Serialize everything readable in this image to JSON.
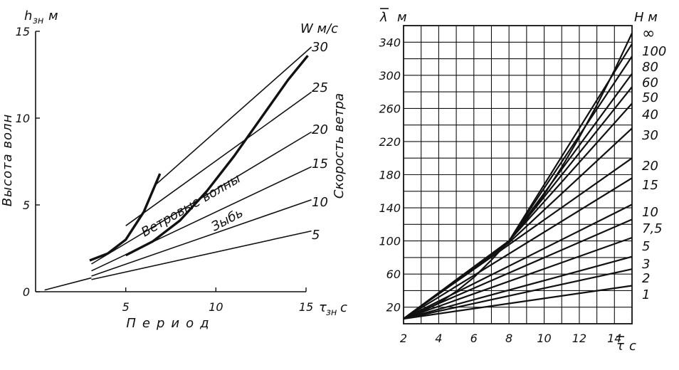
{
  "chart_data": [
    {
      "type": "line",
      "ylabel_symbol": "h",
      "ylabel_subscript": "зн",
      "ylabel_unit": "м",
      "ylabel_side": "Высота волн",
      "xlabel": "Период",
      "xlabel_symbol": "τ",
      "xlabel_subscript": "зн",
      "xlabel_unit": "с",
      "xlim": [
        0,
        15
      ],
      "ylim": [
        0,
        15
      ],
      "x_ticks": [
        5,
        10,
        15
      ],
      "y_ticks": [
        0,
        5,
        10,
        15
      ],
      "x_tick_labels": [
        "5",
        "10",
        "15"
      ],
      "y_tick_labels": [
        "0",
        "5",
        "10",
        "15"
      ],
      "grid": false,
      "speed_header": "W м/с",
      "speed_axis_label": "Скорость ветра",
      "speed_labels": [
        "30",
        "25",
        "20",
        "15",
        "10",
        "5"
      ],
      "annotations": [
        "Ветровые волны",
        "Зыбь"
      ],
      "series": [
        {
          "name": "30",
          "x": [
            6.7,
            15.3
          ],
          "y": [
            6.2,
            14.1
          ]
        },
        {
          "name": "25",
          "x": [
            5.0,
            15.3
          ],
          "y": [
            3.8,
            11.5
          ]
        },
        {
          "name": "20",
          "x": [
            3.1,
            15.3
          ],
          "y": [
            1.6,
            9.2
          ]
        },
        {
          "name": "15",
          "x": [
            3.1,
            15.3
          ],
          "y": [
            1.2,
            7.2
          ]
        },
        {
          "name": "10",
          "x": [
            3.1,
            15.3
          ],
          "y": [
            0.9,
            5.3
          ]
        },
        {
          "name": "5",
          "x": [
            3.1,
            15.3
          ],
          "y": [
            0.7,
            3.5
          ]
        },
        {
          "name": "",
          "x": [
            0.5,
            3.1
          ],
          "y": [
            0.1,
            0.8
          ]
        },
        {
          "name": "",
          "x": [
            3.0,
            4.0,
            5.0,
            6.0,
            6.9
          ],
          "y": [
            1.8,
            2.2,
            3.0,
            4.6,
            6.8
          ],
          "bold": true
        },
        {
          "name": "",
          "x": [
            5.0,
            6.5,
            8.0,
            9.5,
            11.0,
            12.5,
            14.0,
            15.1
          ],
          "y": [
            2.1,
            2.9,
            4.1,
            5.8,
            7.8,
            10.0,
            12.2,
            13.6
          ],
          "bold": true
        }
      ]
    },
    {
      "type": "line",
      "ylabel_symbol": "λ",
      "ylabel_unit": "м",
      "xlabel_symbol": "τ",
      "xlabel_unit": "с",
      "depth_header": "Н м",
      "xlim": [
        2,
        15
      ],
      "ylim": [
        0,
        360
      ],
      "x_ticks": [
        2,
        4,
        6,
        8,
        10,
        12,
        14
      ],
      "y_ticks": [
        20,
        60,
        100,
        140,
        180,
        220,
        260,
        300,
        340
      ],
      "x_tick_labels": [
        "2",
        "4",
        "6",
        "8",
        "10",
        "12",
        "14"
      ],
      "y_tick_labels": [
        "20",
        "60",
        "100",
        "140",
        "180",
        "220",
        "260",
        "300",
        "340"
      ],
      "grid": true,
      "series": [
        {
          "name": "∞",
          "x": [
            2,
            3,
            4,
            5,
            6,
            7,
            8,
            9,
            10,
            11,
            12,
            13,
            14,
            15
          ],
          "y": [
            6,
            14,
            25,
            39,
            56,
            77,
            100,
            126,
            156,
            189,
            225,
            264,
            306,
            351
          ]
        },
        {
          "name": "100",
          "x": [
            2,
            8,
            15
          ],
          "y": [
            6,
            100,
            338
          ]
        },
        {
          "name": "80",
          "x": [
            2,
            8,
            15
          ],
          "y": [
            6,
            100,
            323
          ]
        },
        {
          "name": "60",
          "x": [
            2,
            8,
            15
          ],
          "y": [
            6,
            100,
            302
          ]
        },
        {
          "name": "50",
          "x": [
            2,
            8,
            15
          ],
          "y": [
            6,
            100,
            286
          ]
        },
        {
          "name": "40",
          "x": [
            2,
            8,
            15
          ],
          "y": [
            6,
            100,
            266
          ]
        },
        {
          "name": "30",
          "x": [
            2,
            8,
            15
          ],
          "y": [
            6,
            98,
            236
          ]
        },
        {
          "name": "20",
          "x": [
            2,
            15
          ],
          "y": [
            6,
            200
          ]
        },
        {
          "name": "15",
          "x": [
            2,
            15
          ],
          "y": [
            6,
            176
          ]
        },
        {
          "name": "10",
          "x": [
            2,
            15
          ],
          "y": [
            6,
            144
          ]
        },
        {
          "name": "7,5",
          "x": [
            2,
            15
          ],
          "y": [
            6,
            126
          ]
        },
        {
          "name": "5",
          "x": [
            2,
            15
          ],
          "y": [
            6,
            104
          ]
        },
        {
          "name": "3",
          "x": [
            2,
            15
          ],
          "y": [
            6,
            81
          ]
        },
        {
          "name": "2",
          "x": [
            2,
            15
          ],
          "y": [
            6,
            66
          ]
        },
        {
          "name": "1",
          "x": [
            2,
            15
          ],
          "y": [
            6,
            46
          ]
        }
      ]
    }
  ]
}
